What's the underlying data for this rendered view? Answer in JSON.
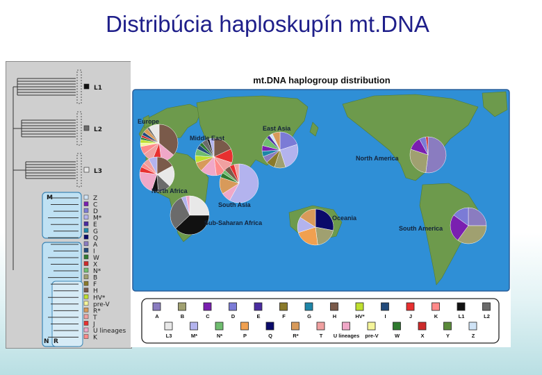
{
  "slide": {
    "title": "Distribúcia haploskupín mt.DNA"
  },
  "tree": {
    "top_groups": [
      {
        "label": "L1",
        "color": "#111111"
      },
      {
        "label": "L2",
        "color": "#6b6b6b"
      },
      {
        "label": "L3",
        "color": "#e8e8e8"
      }
    ],
    "m_label": "M",
    "n_label": "N",
    "r_label": "R",
    "haplogroups": [
      {
        "label": "Z",
        "color": "#cfe3f6"
      },
      {
        "label": "C",
        "color": "#7a1fb0"
      },
      {
        "label": "D",
        "color": "#7b7bd6"
      },
      {
        "label": "M*",
        "color": "#b3b3ee"
      },
      {
        "label": "E",
        "color": "#4a2ca0"
      },
      {
        "label": "G",
        "color": "#1e86a8"
      },
      {
        "label": "Q",
        "color": "#0a0a6a"
      },
      {
        "label": "A",
        "color": "#8a7cc0"
      },
      {
        "label": "I",
        "color": "#234a7a"
      },
      {
        "label": "W",
        "color": "#2f7a2f"
      },
      {
        "label": "X",
        "color": "#cc2a2a"
      },
      {
        "label": "N*",
        "color": "#6fbd6f"
      },
      {
        "label": "B",
        "color": "#a0a070"
      },
      {
        "label": "F",
        "color": "#8a7a2a"
      },
      {
        "label": "H",
        "color": "#7a5a4a"
      },
      {
        "label": "HV*",
        "color": "#bfe030"
      },
      {
        "label": "pre-V",
        "color": "#f5f59a"
      },
      {
        "label": "R*",
        "color": "#d89a5a"
      },
      {
        "label": "T",
        "color": "#f0a0a0"
      },
      {
        "label": "J",
        "color": "#e83030"
      },
      {
        "label": "U lineages",
        "color": "#f0a8c8"
      },
      {
        "label": "K",
        "color": "#ff8a8a"
      }
    ]
  },
  "map": {
    "title": "mt.DNA haplogroup distribution",
    "regions": [
      {
        "name": "Europe",
        "label": "Europe",
        "slices": [
          [
            "H",
            36
          ],
          [
            "U lineages",
            12
          ],
          [
            "J",
            8
          ],
          [
            "T",
            9
          ],
          [
            "K",
            7
          ],
          [
            "pre-V",
            3
          ],
          [
            "HV*",
            3
          ],
          [
            "W",
            2
          ],
          [
            "X",
            2
          ],
          [
            "I",
            3
          ],
          [
            "R*",
            4
          ],
          [
            "L2",
            2
          ],
          [
            "L3",
            9
          ]
        ]
      },
      {
        "name": "Middle East",
        "label": "Middle East",
        "slices": [
          [
            "H",
            18
          ],
          [
            "J",
            12
          ],
          [
            "T",
            10
          ],
          [
            "K",
            8
          ],
          [
            "U lineages",
            14
          ],
          [
            "R*",
            8
          ],
          [
            "HV*",
            6
          ],
          [
            "N*",
            6
          ],
          [
            "I",
            4
          ],
          [
            "W",
            3
          ],
          [
            "L2",
            5
          ],
          [
            "L1",
            2
          ],
          [
            "M*",
            4
          ]
        ]
      },
      {
        "name": "North Africa",
        "label": "North Africa",
        "slices": [
          [
            "H",
            17
          ],
          [
            "L3",
            20
          ],
          [
            "L2",
            12
          ],
          [
            "L1",
            6
          ],
          [
            "U lineages",
            22
          ],
          [
            "J",
            5
          ],
          [
            "K",
            4
          ],
          [
            "T",
            6
          ],
          [
            "M*",
            8
          ]
        ]
      },
      {
        "name": "East Asia",
        "label": "East Asia",
        "slices": [
          [
            "D",
            20
          ],
          [
            "M*",
            25
          ],
          [
            "B",
            10
          ],
          [
            "F",
            8
          ],
          [
            "A",
            6
          ],
          [
            "G",
            5
          ],
          [
            "C",
            5
          ],
          [
            "N*",
            8
          ],
          [
            "E",
            3
          ],
          [
            "Z",
            3
          ],
          [
            "R*",
            7
          ]
        ]
      },
      {
        "name": "South Asia",
        "label": "South Asia",
        "slices": [
          [
            "M*",
            58
          ],
          [
            "U lineages",
            8
          ],
          [
            "R*",
            14
          ],
          [
            "W",
            4
          ],
          [
            "N*",
            3
          ],
          [
            "H",
            5
          ],
          [
            "J",
            4
          ],
          [
            "T",
            4
          ]
        ]
      },
      {
        "name": "Sub-Saharan Africa",
        "label": "Sub-Saharan Africa",
        "slices": [
          [
            "L3",
            25
          ],
          [
            "L1",
            38
          ],
          [
            "L2",
            30
          ],
          [
            "M*",
            4
          ],
          [
            "U lineages",
            3
          ]
        ]
      },
      {
        "name": "North America",
        "label": "North America",
        "slices": [
          [
            "A",
            52
          ],
          [
            "B",
            28
          ],
          [
            "C",
            12
          ],
          [
            "D",
            6
          ],
          [
            "X",
            2
          ]
        ]
      },
      {
        "name": "Oceania",
        "label": "Oceania",
        "slices": [
          [
            "Q",
            28
          ],
          [
            "B",
            20
          ],
          [
            "P",
            22
          ],
          [
            "M*",
            14
          ],
          [
            "R*",
            16
          ]
        ]
      },
      {
        "name": "South America",
        "label": "South America",
        "slices": [
          [
            "A",
            25
          ],
          [
            "B",
            35
          ],
          [
            "C",
            25
          ],
          [
            "D",
            15
          ]
        ]
      }
    ],
    "legend_row1": [
      {
        "label": "A",
        "color": "#8a7cc0"
      },
      {
        "label": "B",
        "color": "#a0a070"
      },
      {
        "label": "C",
        "color": "#7a1fb0"
      },
      {
        "label": "D",
        "color": "#7b7bd6"
      },
      {
        "label": "E",
        "color": "#4a2ca0"
      },
      {
        "label": "F",
        "color": "#8a7a2a"
      },
      {
        "label": "G",
        "color": "#1e86a8"
      },
      {
        "label": "H",
        "color": "#7a5a4a"
      },
      {
        "label": "HV*",
        "color": "#bfe030"
      },
      {
        "label": "I",
        "color": "#234a7a"
      },
      {
        "label": "J",
        "color": "#e83030"
      },
      {
        "label": "K",
        "color": "#ff8a8a"
      },
      {
        "label": "L1",
        "color": "#111111"
      },
      {
        "label": "L2",
        "color": "#6b6b6b"
      }
    ],
    "legend_row2": [
      {
        "label": "L3",
        "color": "#e8e8e8"
      },
      {
        "label": "M*",
        "color": "#b3b3ee"
      },
      {
        "label": "N*",
        "color": "#6fbd6f"
      },
      {
        "label": "P",
        "color": "#f0a050"
      },
      {
        "label": "Q",
        "color": "#0a0a6a"
      },
      {
        "label": "R*",
        "color": "#d89a5a"
      },
      {
        "label": "T",
        "color": "#f0a0a0"
      },
      {
        "label": "U lineages",
        "color": "#f0a8c8"
      },
      {
        "label": "pre-V",
        "color": "#f5f59a"
      },
      {
        "label": "W",
        "color": "#2f7a2f"
      },
      {
        "label": "X",
        "color": "#cc2a2a"
      },
      {
        "label": "Y",
        "color": "#5a8a3a"
      },
      {
        "label": "Z",
        "color": "#cfe3f6"
      }
    ]
  }
}
